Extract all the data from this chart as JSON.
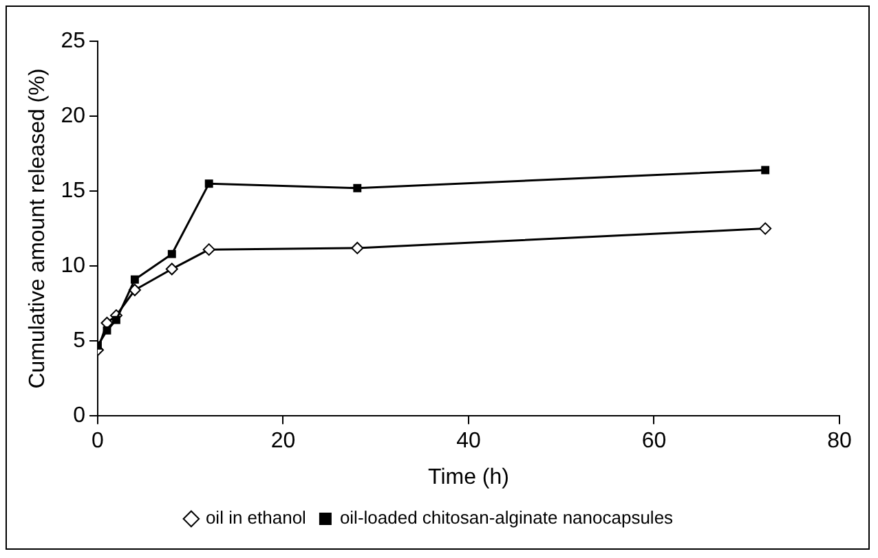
{
  "chart_data": {
    "type": "line",
    "xlabel": "Time (h)",
    "ylabel": "Cumulative amount released (%)",
    "xlim": [
      0,
      80
    ],
    "xticks": [
      0,
      20,
      40,
      60,
      80
    ],
    "ylim": [
      0,
      25
    ],
    "yticks": [
      0,
      5,
      10,
      15,
      20,
      25
    ],
    "grid": false,
    "legend": "bottom",
    "series": [
      {
        "name": "oil in ethanol",
        "color": "#000000",
        "marker": "diamond",
        "x": [
          0,
          1,
          2,
          4,
          8,
          12,
          28,
          72
        ],
        "values": [
          4.4,
          6.2,
          6.7,
          8.4,
          9.8,
          11.1,
          11.2,
          12.5
        ]
      },
      {
        "name": "oil-loaded chitosan-alginate nanocapsules",
        "color": "#000000",
        "marker": "square",
        "x": [
          0,
          1,
          2,
          4,
          8,
          12,
          28,
          72
        ],
        "values": [
          4.7,
          5.7,
          6.4,
          9.1,
          10.8,
          15.5,
          15.2,
          16.4
        ]
      }
    ]
  }
}
